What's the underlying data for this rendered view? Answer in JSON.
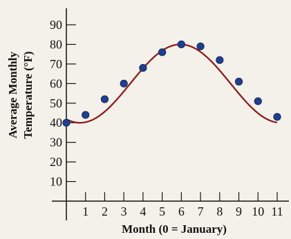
{
  "chart_data": {
    "type": "scatter",
    "xlabel": "Month (0 = January)",
    "ylabel_lines": [
      "Average Monthly",
      "Temperature (°F)"
    ],
    "x_ticks": [
      "1",
      "2",
      "3",
      "4",
      "5",
      "6",
      "7",
      "8",
      "9",
      "10",
      "11"
    ],
    "y_ticks": [
      "10",
      "20",
      "30",
      "40",
      "50",
      "60",
      "70",
      "80",
      "90"
    ],
    "xlim": [
      0,
      11
    ],
    "ylim": [
      0,
      90
    ],
    "points": [
      {
        "x": 0,
        "y": 40
      },
      {
        "x": 1,
        "y": 44
      },
      {
        "x": 2,
        "y": 52
      },
      {
        "x": 3,
        "y": 60
      },
      {
        "x": 4,
        "y": 68
      },
      {
        "x": 5,
        "y": 76
      },
      {
        "x": 6,
        "y": 80
      },
      {
        "x": 7,
        "y": 79
      },
      {
        "x": 8,
        "y": 72
      },
      {
        "x": 9,
        "y": 61
      },
      {
        "x": 10,
        "y": 51
      },
      {
        "x": 11,
        "y": 43
      }
    ],
    "fit_curve": {
      "type": "sinusoidal",
      "equation": "y = 20 sin(0.6x - 2) + 60"
    },
    "grid": false
  }
}
